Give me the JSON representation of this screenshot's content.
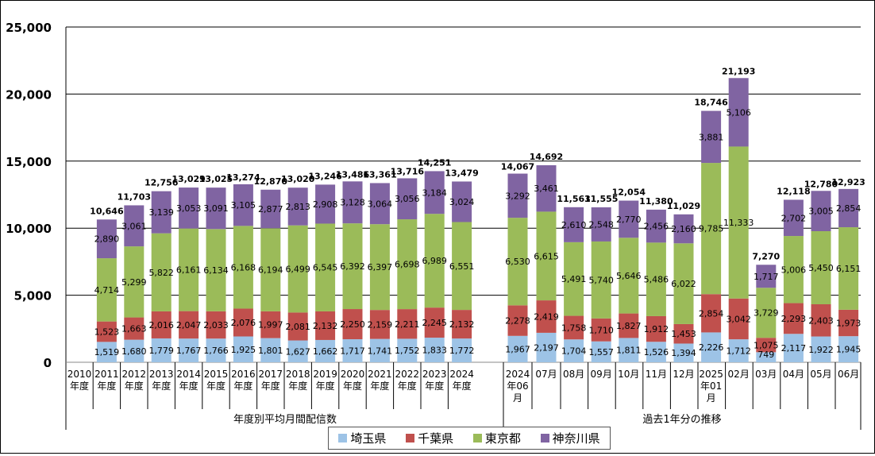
{
  "chart_data": {
    "type": "bar",
    "stacked": true,
    "ylim": [
      0,
      25000
    ],
    "yticks": [
      "0",
      "5,000",
      "10,000",
      "15,000",
      "20,000",
      "25,000"
    ],
    "ytick_values": [
      0,
      5000,
      10000,
      15000,
      20000,
      25000
    ],
    "grid": true,
    "legend_position": "bottom",
    "groups": [
      {
        "label": "年度別平均月間配信数",
        "start": 0,
        "end": 14
      },
      {
        "label": "過去1年分の推移",
        "start": 15,
        "end": 27
      }
    ],
    "categories": [
      [
        "2010",
        "年度"
      ],
      [
        "2011",
        "年度"
      ],
      [
        "2012",
        "年度"
      ],
      [
        "2013",
        "年度"
      ],
      [
        "2014",
        "年度"
      ],
      [
        "2015",
        "年度"
      ],
      [
        "2016",
        "年度"
      ],
      [
        "2017",
        "年度"
      ],
      [
        "2018",
        "年度"
      ],
      [
        "2019",
        "年度"
      ],
      [
        "2020",
        "年度"
      ],
      [
        "2021",
        "年度"
      ],
      [
        "2022",
        "年度"
      ],
      [
        "2023",
        "年度"
      ],
      [
        "2024",
        "年度"
      ],
      [
        "2024",
        "年06",
        "月"
      ],
      [
        "07月"
      ],
      [
        "08月"
      ],
      [
        "09月"
      ],
      [
        "10月"
      ],
      [
        "11月"
      ],
      [
        "12月"
      ],
      [
        "2025",
        "年01",
        "月"
      ],
      [
        "02月"
      ],
      [
        "03月"
      ],
      [
        "04月"
      ],
      [
        "05月"
      ],
      [
        "06月"
      ]
    ],
    "series": [
      {
        "name": "埼玉県",
        "color": "#9dc3e6",
        "values": [
          null,
          1519,
          1680,
          1779,
          1767,
          1766,
          1925,
          1801,
          1627,
          1662,
          1717,
          1741,
          1752,
          1833,
          1772,
          1967,
          2197,
          1704,
          1557,
          1811,
          1526,
          1394,
          2226,
          1712,
          749,
          2117,
          1922,
          1945
        ]
      },
      {
        "name": "千葉県",
        "color": "#c0504d",
        "values": [
          null,
          1523,
          1663,
          2016,
          2047,
          2033,
          2076,
          1997,
          2081,
          2132,
          2250,
          2159,
          2211,
          2245,
          2132,
          2278,
          2419,
          1758,
          1710,
          1827,
          1912,
          1453,
          2854,
          3042,
          1075,
          2293,
          2403,
          1973
        ]
      },
      {
        "name": "東京都",
        "color": "#9bbb59",
        "values": [
          null,
          4714,
          5299,
          5822,
          6161,
          6134,
          6168,
          6194,
          6499,
          6545,
          6392,
          6397,
          6698,
          6989,
          6551,
          6530,
          6615,
          5491,
          5740,
          5646,
          5486,
          6022,
          9785,
          11333,
          3729,
          5006,
          5450,
          6151
        ]
      },
      {
        "name": "神奈川県",
        "color": "#8064a2",
        "values": [
          null,
          2890,
          3061,
          3139,
          3053,
          3091,
          3105,
          2877,
          2813,
          2908,
          3128,
          3064,
          3056,
          3184,
          3024,
          3292,
          3461,
          2610,
          2548,
          2770,
          2456,
          2160,
          3881,
          5106,
          1717,
          2702,
          3005,
          2854
        ]
      }
    ],
    "totals": [
      null,
      10646,
      11703,
      12756,
      13029,
      13025,
      13274,
      12870,
      13020,
      13246,
      13486,
      13361,
      13716,
      14251,
      13479,
      14067,
      14692,
      11563,
      11555,
      12054,
      11380,
      11029,
      18746,
      21193,
      7270,
      12118,
      12780,
      12923
    ]
  }
}
